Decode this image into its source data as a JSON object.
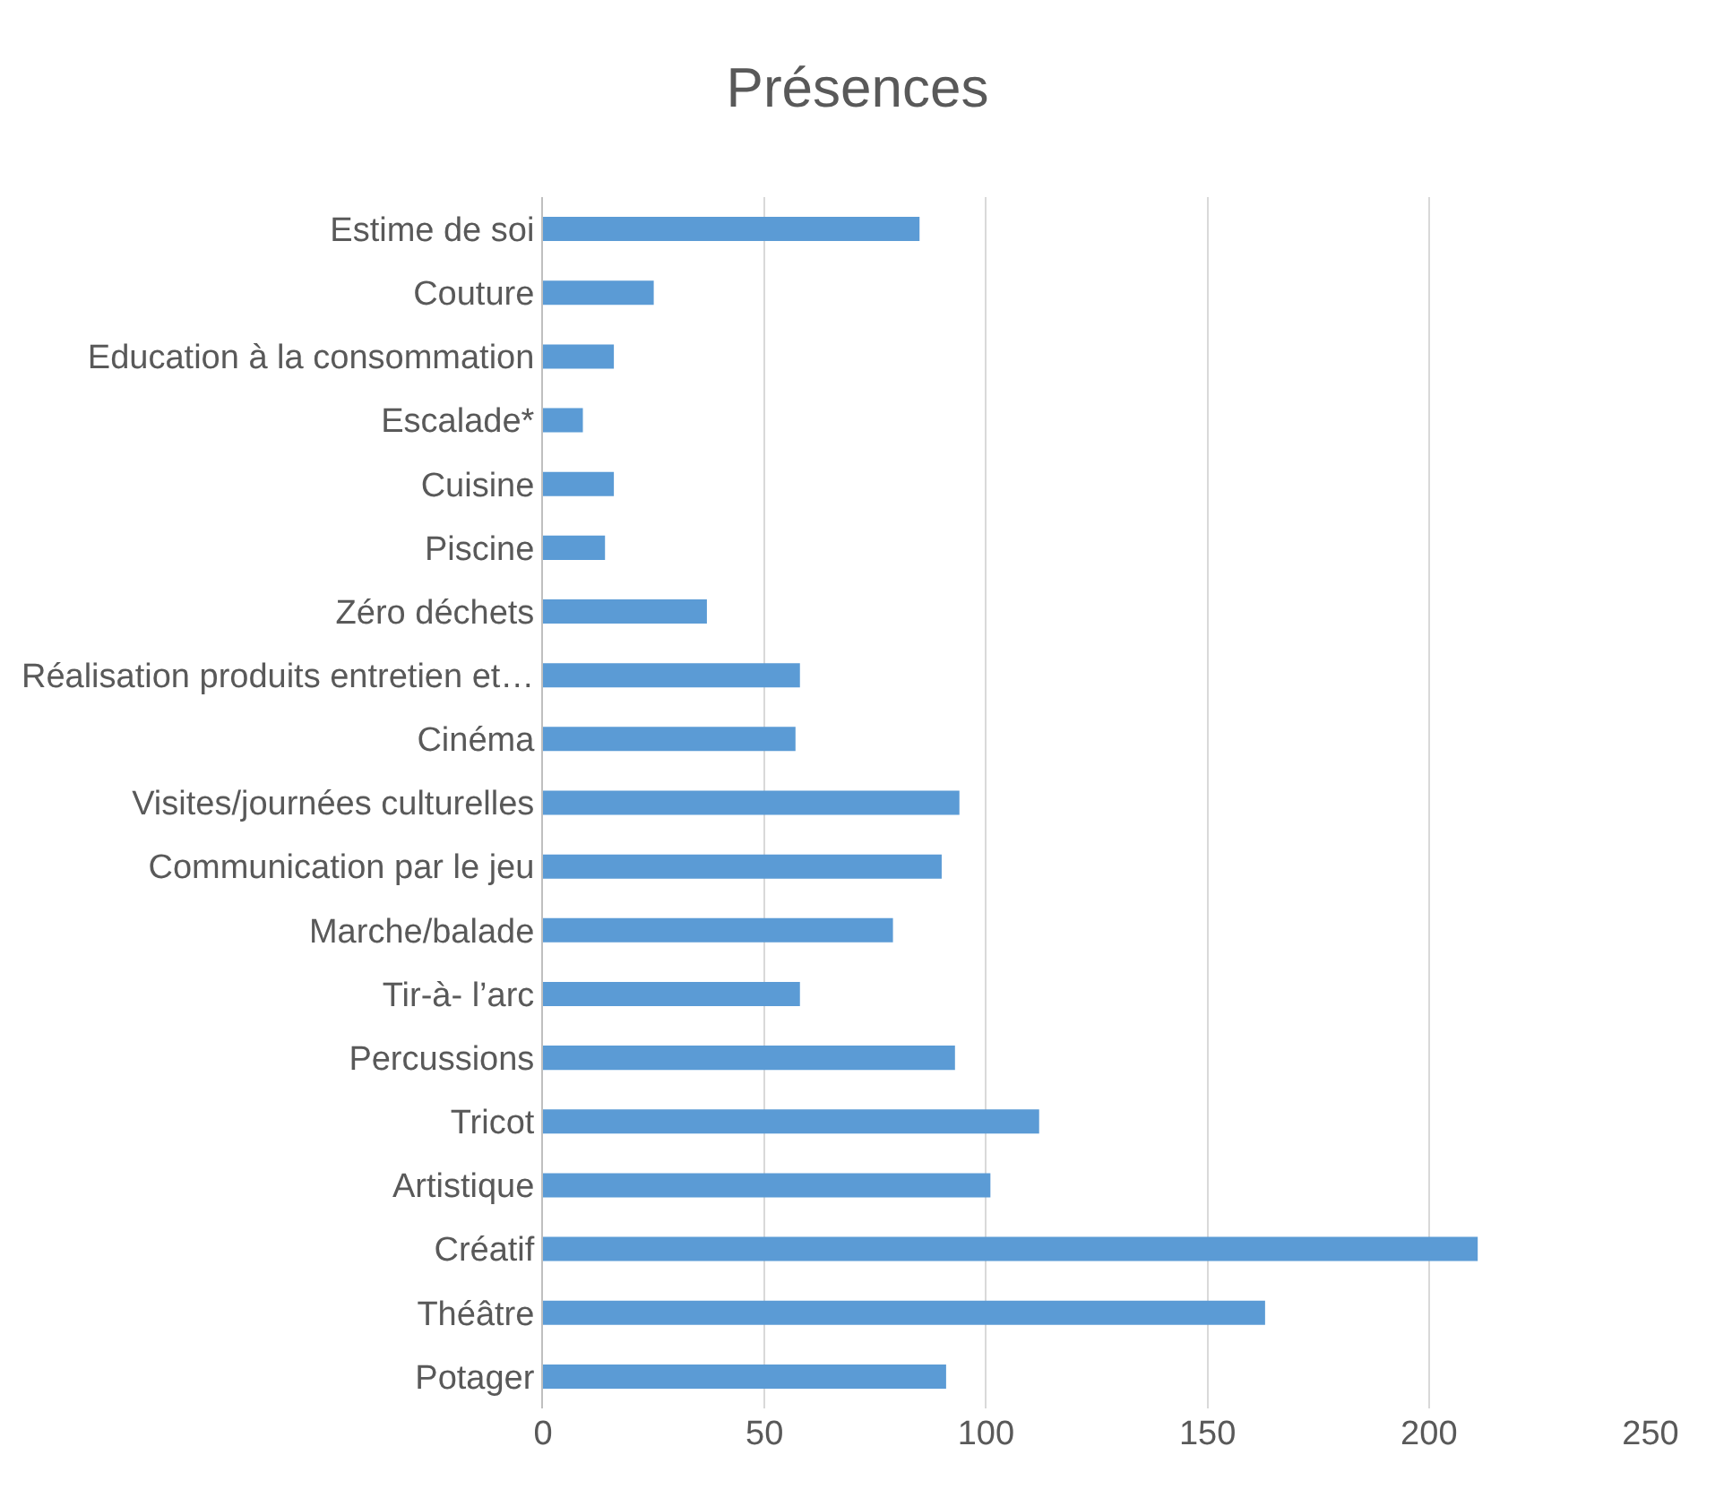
{
  "chart_data": {
    "type": "bar",
    "title": "Présences",
    "orientation": "horizontal",
    "categories": [
      "Estime de soi",
      "Couture",
      "Education à la consommation",
      "Escalade*",
      "Cuisine",
      "Piscine",
      "Zéro déchets",
      "Réalisation produits entretien et…",
      "Cinéma",
      "Visites/journées culturelles",
      "Communication par le jeu",
      "Marche/balade",
      "Tir-à- l’arc",
      "Percussions",
      "Tricot",
      "Artistique",
      "Créatif",
      "Théâtre",
      "Potager"
    ],
    "values": [
      85,
      25,
      16,
      9,
      16,
      14,
      37,
      58,
      57,
      94,
      90,
      79,
      58,
      93,
      112,
      101,
      211,
      163,
      91
    ],
    "color": "#5b9bd5",
    "xlim": [
      0,
      250
    ],
    "xticks": [
      0,
      50,
      100,
      150,
      200,
      250
    ],
    "grid": "x"
  }
}
